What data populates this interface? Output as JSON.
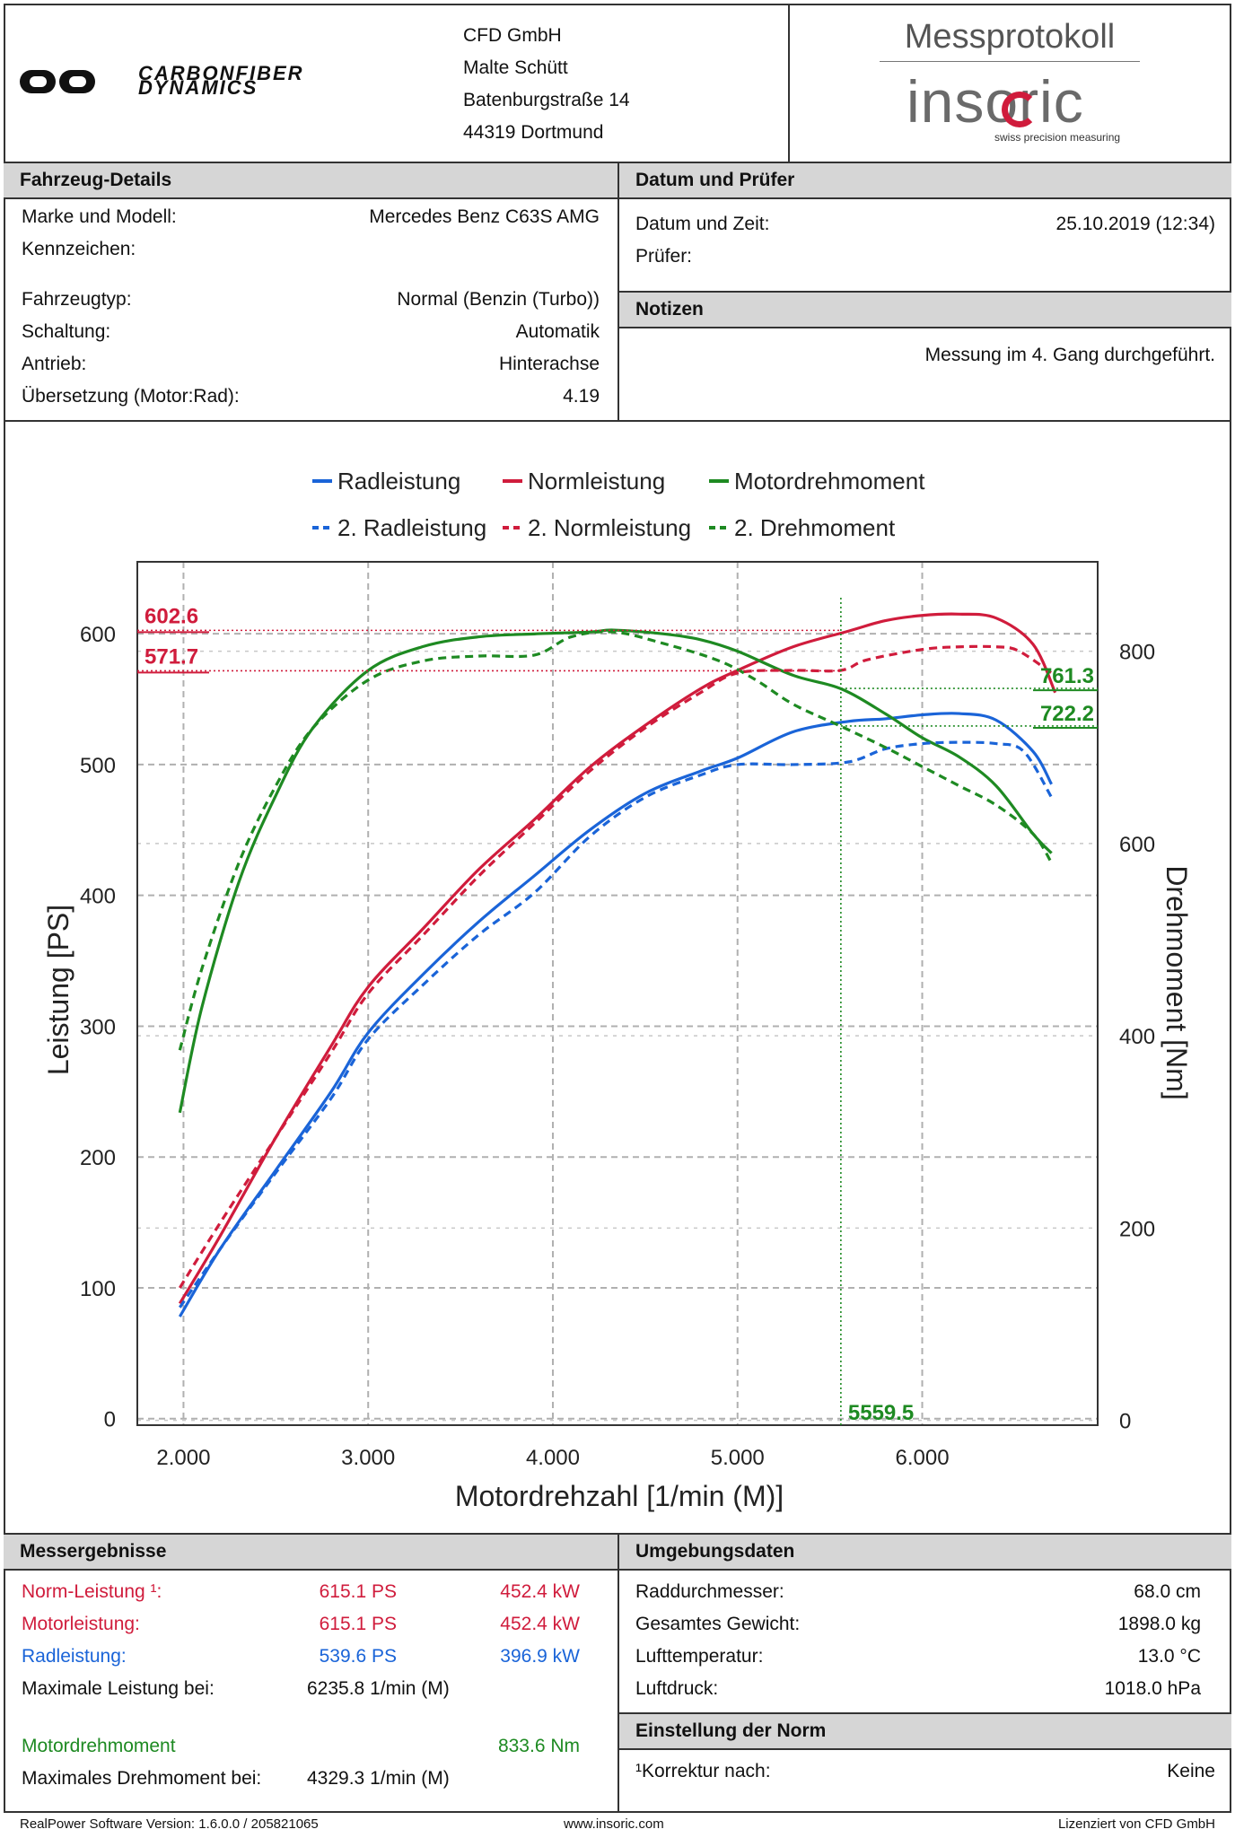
{
  "header": {
    "company_logo_text": "CARBONFIBER DYNAMICS",
    "address": [
      "CFD GmbH",
      "Malte Schütt",
      "Batenburgstraße 14",
      "44319 Dortmund"
    ],
    "doc_title": "Messprotokoll",
    "brand": "insoric",
    "brand_tagline": "swiss precision measuring"
  },
  "vehicle": {
    "title": "Fahrzeug-Details",
    "rows": [
      {
        "label": "Marke und Modell:",
        "value": "Mercedes Benz C63S AMG"
      },
      {
        "label": "Kennzeichen:",
        "value": ""
      },
      {
        "label": "Fahrzeugtyp:",
        "value": "Normal (Benzin (Turbo))"
      },
      {
        "label": "Schaltung:",
        "value": "Automatik"
      },
      {
        "label": "Antrieb:",
        "value": "Hinterachse"
      },
      {
        "label": "Übersetzung (Motor:Rad):",
        "value": "4.19"
      }
    ]
  },
  "date": {
    "title": "Datum und Prüfer",
    "datetime_label": "Datum und Zeit:",
    "datetime_value": "25.10.2019 (12:34)",
    "examiner_label": "Prüfer:"
  },
  "notes": {
    "title": "Notizen",
    "text": "Messung im 4. Gang durchgeführt."
  },
  "chart_data": {
    "type": "line",
    "xlabel": "Motordrehzahl [1/min (M)]",
    "ylabel": "Leistung [PS]",
    "y2label": "Drehmoment [Nm]",
    "xlim": [
      1750,
      6950
    ],
    "ylim": [
      -5,
      655
    ],
    "y2lim": [
      -5,
      893
    ],
    "x_ticks": [
      2000,
      3000,
      4000,
      5000,
      6000
    ],
    "x_tick_labels": [
      "2.000",
      "3.000",
      "4.000",
      "5.000",
      "6.000"
    ],
    "y_ticks": [
      0,
      100,
      200,
      300,
      400,
      500,
      600
    ],
    "y2_ticks": [
      0,
      200,
      400,
      600,
      800
    ],
    "grid": true,
    "legend": [
      {
        "name": "Radleistung",
        "color": "#1a64d8",
        "dash": false
      },
      {
        "name": "Normleistung",
        "color": "#d01c3c",
        "dash": false
      },
      {
        "name": "Motordrehmoment",
        "color": "#1e8a22",
        "dash": false
      },
      {
        "name": "2. Radleistung",
        "color": "#1a64d8",
        "dash": true
      },
      {
        "name": "2. Normleistung",
        "color": "#d01c3c",
        "dash": true
      },
      {
        "name": "2. Drehmoment",
        "color": "#1e8a22",
        "dash": true
      }
    ],
    "series": [
      {
        "name": "Radleistung",
        "axis": "left",
        "color": "#1a64d8",
        "dash": false,
        "x": [
          1980,
          2200,
          2500,
          2800,
          3000,
          3300,
          3600,
          3900,
          4200,
          4500,
          4800,
          5000,
          5300,
          5600,
          5800,
          6000,
          6200,
          6400,
          6600,
          6700
        ],
        "y": [
          78,
          130,
          190,
          250,
          295,
          340,
          380,
          415,
          450,
          478,
          495,
          505,
          525,
          533,
          535,
          538,
          539,
          534,
          510,
          485
        ]
      },
      {
        "name": "Normleistung",
        "axis": "left",
        "color": "#d01c3c",
        "dash": false,
        "x": [
          1980,
          2200,
          2500,
          2800,
          3000,
          3300,
          3600,
          3900,
          4200,
          4500,
          4800,
          5000,
          5300,
          5600,
          5800,
          6000,
          6200,
          6400,
          6600,
          6720
        ],
        "y": [
          88,
          140,
          215,
          285,
          330,
          375,
          420,
          458,
          498,
          530,
          558,
          572,
          590,
          602,
          610,
          614,
          615,
          612,
          592,
          555
        ]
      },
      {
        "name": "Motordrehmoment",
        "axis": "right",
        "color": "#1e8a22",
        "dash": false,
        "x": [
          1980,
          2100,
          2300,
          2500,
          2700,
          3000,
          3300,
          3600,
          3900,
          4200,
          4329,
          4600,
          4800,
          5000,
          5300,
          5559,
          5800,
          6000,
          6200,
          6400,
          6600,
          6700
        ],
        "y": [
          320,
          430,
          560,
          650,
          720,
          780,
          805,
          815,
          818,
          820,
          822,
          818,
          812,
          800,
          775,
          761,
          735,
          710,
          690,
          660,
          610,
          590
        ]
      },
      {
        "name": "2. Radleistung",
        "axis": "left",
        "color": "#1a64d8",
        "dash": true,
        "x": [
          1980,
          2200,
          2500,
          2800,
          3000,
          3300,
          3600,
          3900,
          4200,
          4500,
          4800,
          5000,
          5300,
          5600,
          5800,
          6000,
          6200,
          6400,
          6550,
          6700
        ],
        "y": [
          85,
          130,
          188,
          245,
          290,
          332,
          370,
          402,
          445,
          475,
          492,
          500,
          500,
          502,
          512,
          516,
          517,
          516,
          510,
          475
        ]
      },
      {
        "name": "2. Normleistung",
        "axis": "left",
        "color": "#d01c3c",
        "dash": true,
        "x": [
          1980,
          2200,
          2500,
          2800,
          3000,
          3300,
          3600,
          3900,
          4200,
          4500,
          4800,
          5000,
          5300,
          5559,
          5700,
          6000,
          6200,
          6400,
          6520,
          6700
        ],
        "y": [
          100,
          150,
          215,
          280,
          325,
          370,
          415,
          455,
          495,
          528,
          555,
          570,
          572,
          572,
          580,
          588,
          590,
          590,
          587,
          570
        ]
      },
      {
        "name": "2. Drehmoment",
        "axis": "right",
        "color": "#1e8a22",
        "dash": true,
        "x": [
          1980,
          2100,
          2300,
          2500,
          2700,
          3000,
          3300,
          3600,
          3900,
          4100,
          4329,
          4600,
          4900,
          5100,
          5300,
          5559,
          5800,
          6000,
          6200,
          6400,
          6600,
          6700
        ],
        "y": [
          385,
          470,
          580,
          660,
          720,
          770,
          790,
          795,
          796,
          815,
          820,
          808,
          790,
          770,
          745,
          722,
          700,
          680,
          660,
          640,
          610,
          580
        ]
      }
    ],
    "annotations": [
      {
        "text": "602.6",
        "axis": "left",
        "y": 602.6,
        "x_from": 1750,
        "x_to": 5559.5,
        "color": "#d01c3c"
      },
      {
        "text": "571.7",
        "axis": "left",
        "y": 571.7,
        "x_from": 1750,
        "x_to": 5559.5,
        "color": "#d01c3c"
      },
      {
        "text": "761.3",
        "axis": "right",
        "y": 761.3,
        "x_from": 5559.5,
        "x_to": 6950,
        "color": "#1e8a22"
      },
      {
        "text": "722.2",
        "axis": "right",
        "y": 722.2,
        "x_from": 5559.5,
        "x_to": 6950,
        "color": "#1e8a22"
      },
      {
        "text": "5559.5",
        "axis": "x",
        "x": 5559.5,
        "color": "#1e8a22"
      }
    ]
  },
  "results": {
    "title": "Messergebnisse",
    "norm_label": "Norm-Leistung ¹:",
    "norm_ps": "615.1 PS",
    "norm_kw": "452.4 kW",
    "motor_label": "Motorleistung:",
    "motor_ps": "615.1 PS",
    "motor_kw": "452.4 kW",
    "rad_label": "Radleistung:",
    "rad_ps": "539.6 PS",
    "rad_kw": "396.9 kW",
    "maxpow_label": "Maximale Leistung bei:",
    "maxpow_value": "6235.8 1/min (M)",
    "torque_label": "Motordrehmoment",
    "torque_value": "833.6 Nm",
    "maxtorque_label": "Maximales Drehmoment bei:",
    "maxtorque_value": "4329.3 1/min (M)"
  },
  "env": {
    "title": "Umgebungsdaten",
    "rows": [
      {
        "label": "Raddurchmesser:",
        "value": "68.0 cm"
      },
      {
        "label": "Gesamtes Gewicht:",
        "value": "1898.0 kg"
      },
      {
        "label": "Lufttemperatur:",
        "value": "13.0 °C"
      },
      {
        "label": "Luftdruck:",
        "value": "1018.0 hPa"
      }
    ]
  },
  "norm": {
    "title": "Einstellung der Norm",
    "label": "¹Korrektur nach:",
    "value": "Keine"
  },
  "footer": {
    "left": "RealPower Software Version: 1.6.0.0 / 205821065",
    "center": "www.insoric.com",
    "right": "Lizenziert von CFD GmbH"
  }
}
